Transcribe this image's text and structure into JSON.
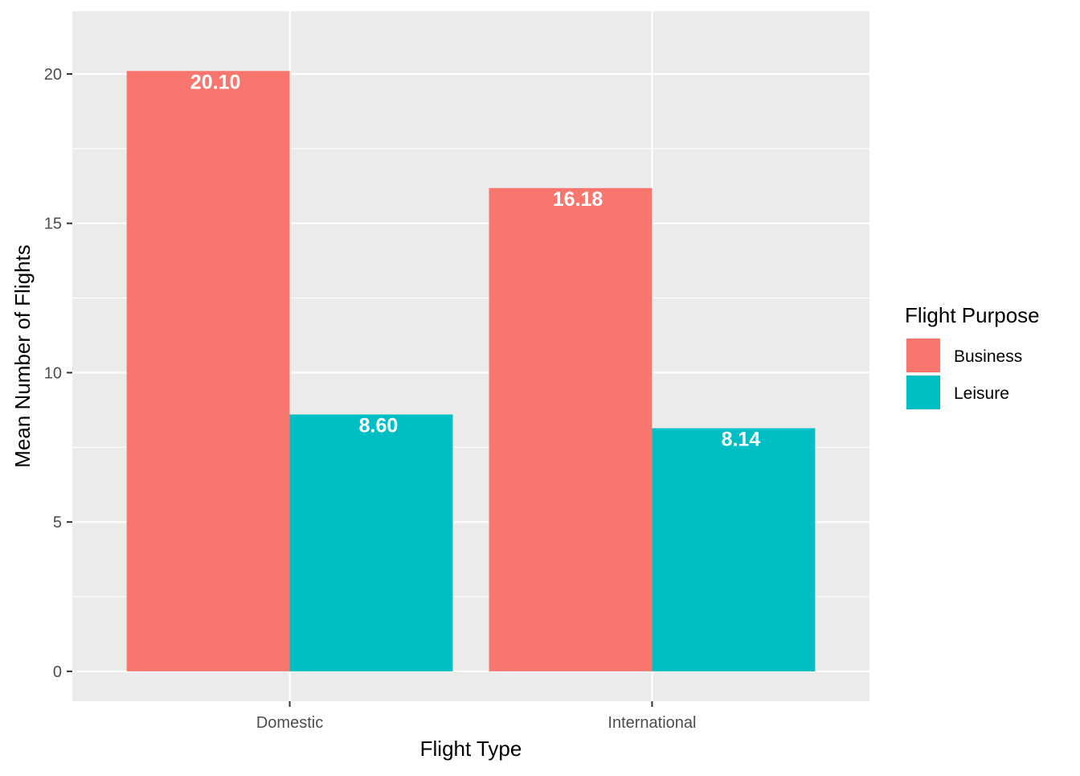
{
  "chart_data": {
    "type": "bar",
    "categories": [
      "Domestic",
      "International"
    ],
    "series": [
      {
        "name": "Business",
        "values": [
          20.1,
          16.18
        ],
        "labels": [
          "20.10",
          "16.18"
        ],
        "color": "#F8766D"
      },
      {
        "name": "Leisure",
        "values": [
          8.6,
          8.14
        ],
        "labels": [
          "8.60",
          "8.14"
        ],
        "color": "#00BFC4"
      }
    ],
    "title": "",
    "xlabel": "Flight Type",
    "ylabel": "Mean Number of Flights",
    "ylim": [
      -1,
      22.1
    ],
    "yticks": [
      0,
      5,
      10,
      15,
      20
    ],
    "ytick_labels": [
      "0",
      "5",
      "10",
      "15",
      "20"
    ],
    "grid": true,
    "legend": {
      "title": "Flight Purpose",
      "placement": "right"
    },
    "colors": {
      "panel": "#EBEBEB",
      "grid": "#FFFFFF"
    }
  }
}
